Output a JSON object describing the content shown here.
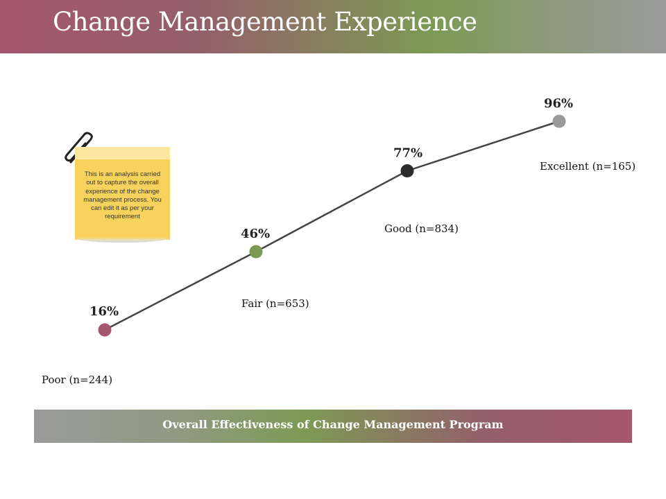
{
  "header": {
    "title": "Change Management Experience"
  },
  "note": {
    "text": "This is an analysis carried out to capture the overall experience of the change management process. You can edit it as per your requirement"
  },
  "footer": {
    "label": "Overall Effectiveness of Change Management Program"
  },
  "chart_data": {
    "type": "line",
    "categories": [
      "Poor (n=244)",
      "Fair (n=653)",
      "Good (n=834)",
      "Excellent (n=165)"
    ],
    "values": [
      16,
      46,
      77,
      96
    ],
    "value_labels": [
      "16%",
      "46%",
      "77%",
      "96%"
    ],
    "point_colors": [
      "#a6566f",
      "#7d9a55",
      "#2b2b2b",
      "#9a9a9a"
    ],
    "line_color": "#444444",
    "title": "",
    "xlabel": "Overall Effectiveness of Change Management Program",
    "ylabel": "",
    "grid": false,
    "legend": "none"
  }
}
